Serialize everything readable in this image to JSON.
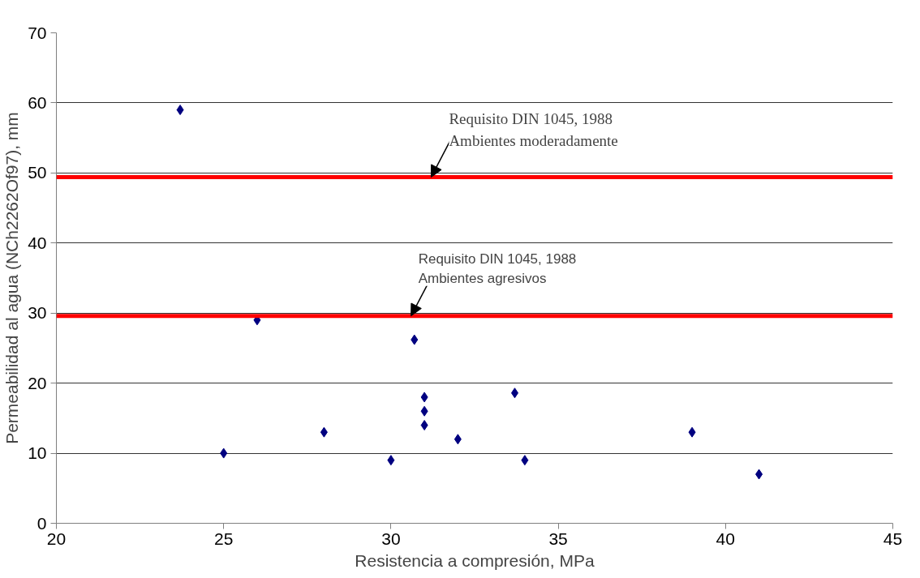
{
  "chart_data": {
    "type": "scatter",
    "xlabel": "Resistencia a compresión, MPa",
    "ylabel": "Permeabilidad al agua (NCh2262Of97), mm",
    "x": [
      23.7,
      25,
      26,
      28,
      30,
      30.7,
      31,
      31,
      31,
      32,
      33.7,
      34,
      39,
      41
    ],
    "series": [
      {
        "color": "#000080",
        "values": [
          59.0,
          10,
          29,
          13,
          9,
          26.2,
          18,
          16,
          14,
          12,
          18.6,
          9,
          13,
          7
        ]
      }
    ],
    "marker": "diamond",
    "xlim": [
      20,
      45
    ],
    "xticks": [
      20,
      25,
      30,
      35,
      40,
      45
    ],
    "ylim": [
      0,
      70
    ],
    "yticks": [
      0,
      10,
      20,
      30,
      40,
      50,
      60,
      70
    ],
    "grid": "y",
    "ref_lines": [
      {
        "axis": "y",
        "value": 49.4,
        "color": "#ff0000"
      },
      {
        "axis": "y",
        "value": 29.6,
        "color": "#ff0000"
      }
    ],
    "annotations": [
      {
        "text": "Requisito DIN 1045, 1988\nAmbientes moderadamente",
        "x": 31.2,
        "y": 49.4
      },
      {
        "text": "Requisito DIN 1045, 1988\nAmbientes agresivos",
        "x": 30.6,
        "y": 29.6
      }
    ]
  }
}
